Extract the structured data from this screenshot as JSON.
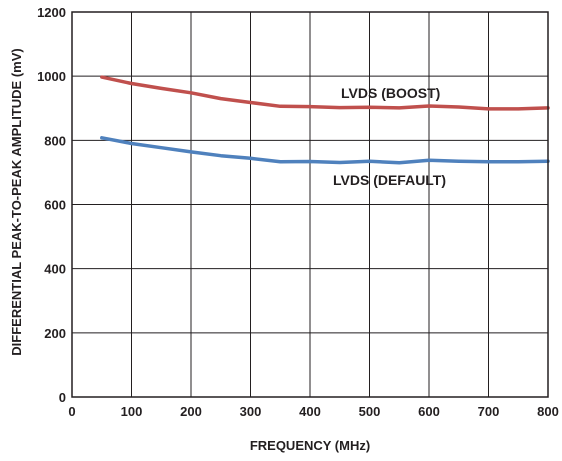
{
  "chart_data": {
    "type": "line",
    "xlabel": "FREQUENCY (MHz)",
    "ylabel": "DIFFERENTIAL PEAK-TO-PEAK AMPLITUDE (mV)",
    "xlim": [
      0,
      800
    ],
    "ylim": [
      0,
      1200
    ],
    "xticks": [
      0,
      100,
      200,
      300,
      400,
      500,
      600,
      700,
      800
    ],
    "yticks": [
      0,
      200,
      400,
      600,
      800,
      1000,
      1200
    ],
    "grid": true,
    "series": [
      {
        "name": "LVDS (BOOST)",
        "color": "#c0504d",
        "x": [
          50,
          100,
          150,
          200,
          250,
          300,
          350,
          400,
          450,
          500,
          550,
          600,
          650,
          700,
          750,
          800
        ],
        "y": [
          997,
          977,
          962,
          948,
          930,
          918,
          906,
          905,
          902,
          903,
          901,
          907,
          904,
          898,
          898,
          901
        ]
      },
      {
        "name": "LVDS (DEFAULT)",
        "color": "#4f81bd",
        "x": [
          50,
          100,
          150,
          200,
          250,
          300,
          350,
          400,
          450,
          500,
          550,
          600,
          650,
          700,
          750,
          800
        ],
        "y": [
          808,
          790,
          777,
          764,
          752,
          744,
          733,
          734,
          731,
          735,
          730,
          738,
          735,
          733,
          733,
          735
        ]
      }
    ]
  }
}
